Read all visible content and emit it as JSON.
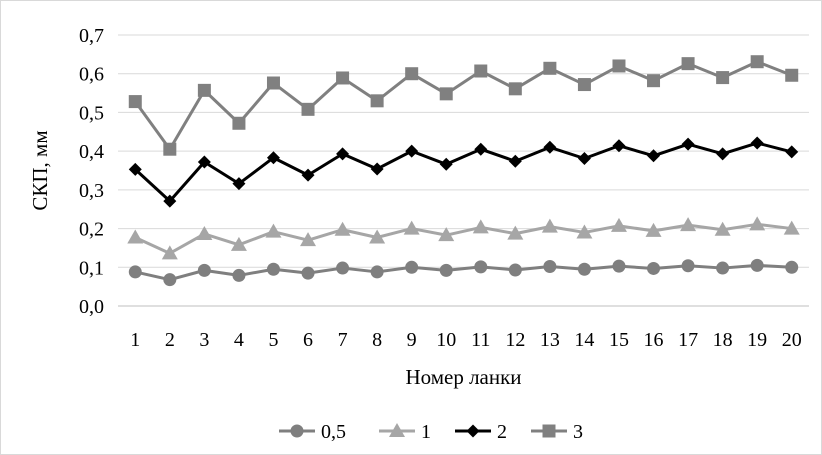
{
  "chart_data": {
    "type": "line",
    "title": "",
    "xlabel": "Номер ланки",
    "ylabel": "СКП, мм",
    "ylim": [
      0,
      0.7
    ],
    "yticks": [
      "0,0",
      "0,1",
      "0,2",
      "0,3",
      "0,4",
      "0,5",
      "0,6",
      "0,7"
    ],
    "grid": true,
    "legend_position": "bottom",
    "categories": [
      "1",
      "2",
      "3",
      "4",
      "5",
      "6",
      "7",
      "8",
      "9",
      "10",
      "11",
      "12",
      "13",
      "14",
      "15",
      "16",
      "17",
      "18",
      "19",
      "20"
    ],
    "series": [
      {
        "name": "0,5",
        "marker": "circle",
        "color": "#7f7f7f",
        "values": [
          0.088,
          0.068,
          0.092,
          0.079,
          0.095,
          0.085,
          0.098,
          0.088,
          0.1,
          0.092,
          0.101,
          0.093,
          0.102,
          0.095,
          0.103,
          0.097,
          0.104,
          0.098,
          0.105,
          0.1
        ]
      },
      {
        "name": "1",
        "marker": "triangle",
        "color": "#a6a6a6",
        "values": [
          0.177,
          0.136,
          0.186,
          0.158,
          0.192,
          0.17,
          0.197,
          0.177,
          0.2,
          0.183,
          0.203,
          0.187,
          0.205,
          0.19,
          0.207,
          0.194,
          0.209,
          0.197,
          0.211,
          0.2
        ]
      },
      {
        "name": "2",
        "marker": "diamond",
        "color": "#000000",
        "values": [
          0.353,
          0.271,
          0.372,
          0.316,
          0.383,
          0.338,
          0.393,
          0.354,
          0.4,
          0.366,
          0.405,
          0.374,
          0.41,
          0.381,
          0.414,
          0.388,
          0.418,
          0.393,
          0.421,
          0.398
        ]
      },
      {
        "name": "3",
        "marker": "square",
        "color": "#808080",
        "values": [
          0.528,
          0.405,
          0.557,
          0.472,
          0.576,
          0.508,
          0.589,
          0.53,
          0.6,
          0.548,
          0.607,
          0.561,
          0.614,
          0.572,
          0.62,
          0.582,
          0.626,
          0.59,
          0.631,
          0.596
        ]
      }
    ]
  }
}
